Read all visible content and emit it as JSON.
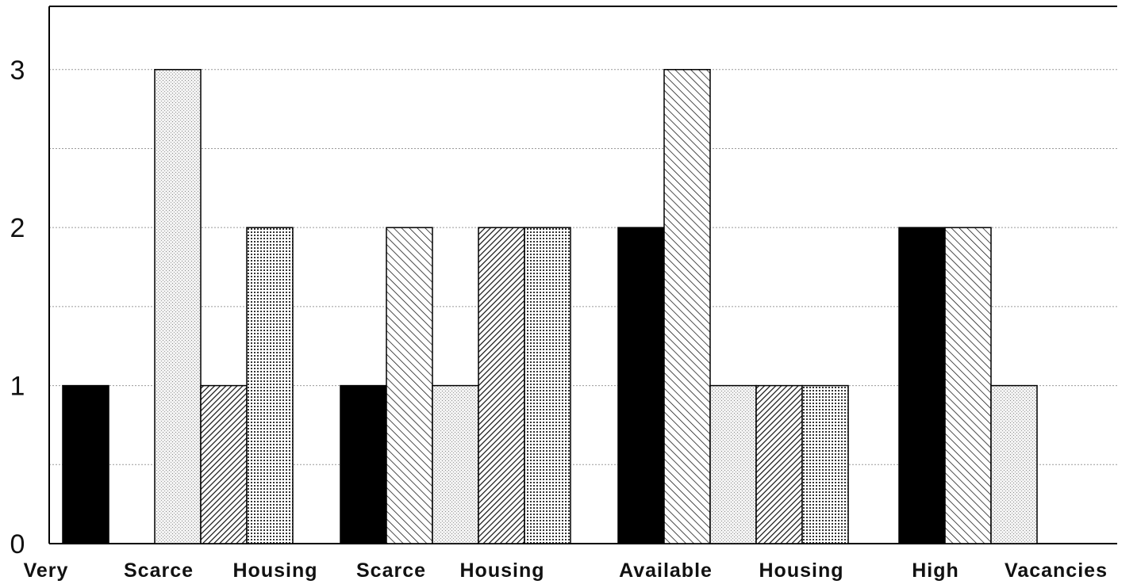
{
  "chart_data": {
    "type": "bar",
    "title": "",
    "xlabel": "",
    "ylabel": "",
    "ylim": [
      0,
      3.4
    ],
    "yticks": [
      0,
      1,
      2,
      3
    ],
    "ytick_labels": [
      "0",
      "1",
      "2",
      "3"
    ],
    "grid": true,
    "legend": "none",
    "x_labels": [
      "Very",
      "Scarce",
      "Housing",
      "Scarce",
      "Housing",
      "Available",
      "Housing",
      "High",
      "Vacancies"
    ],
    "groups": [
      {
        "bars": [
          {
            "pattern": "solid",
            "value": 1
          },
          {
            "pattern": "blank",
            "value": 0
          },
          {
            "pattern": "light-dots",
            "value": 3
          },
          {
            "pattern": "back-hatch",
            "value": 1
          },
          {
            "pattern": "dense-dots",
            "value": 2
          }
        ]
      },
      {
        "bars": [
          {
            "pattern": "solid",
            "value": 1
          },
          {
            "pattern": "forward-hatch",
            "value": 2
          },
          {
            "pattern": "light-dots",
            "value": 1
          },
          {
            "pattern": "back-hatch",
            "value": 2
          },
          {
            "pattern": "dense-dots",
            "value": 2
          }
        ]
      },
      {
        "bars": [
          {
            "pattern": "solid",
            "value": 2
          },
          {
            "pattern": "forward-hatch",
            "value": 3
          },
          {
            "pattern": "light-dots",
            "value": 1
          },
          {
            "pattern": "back-hatch",
            "value": 1
          },
          {
            "pattern": "dense-dots",
            "value": 1
          }
        ]
      },
      {
        "bars": [
          {
            "pattern": "solid",
            "value": 2
          },
          {
            "pattern": "forward-hatch",
            "value": 2
          },
          {
            "pattern": "light-dots",
            "value": 1
          },
          {
            "pattern": "blank",
            "value": 0
          },
          {
            "pattern": "blank",
            "value": 0
          }
        ]
      }
    ],
    "colors": {
      "solid": "#000000",
      "stroke": "#000000",
      "grid": "#9a9a9a",
      "background": "#ffffff"
    }
  }
}
